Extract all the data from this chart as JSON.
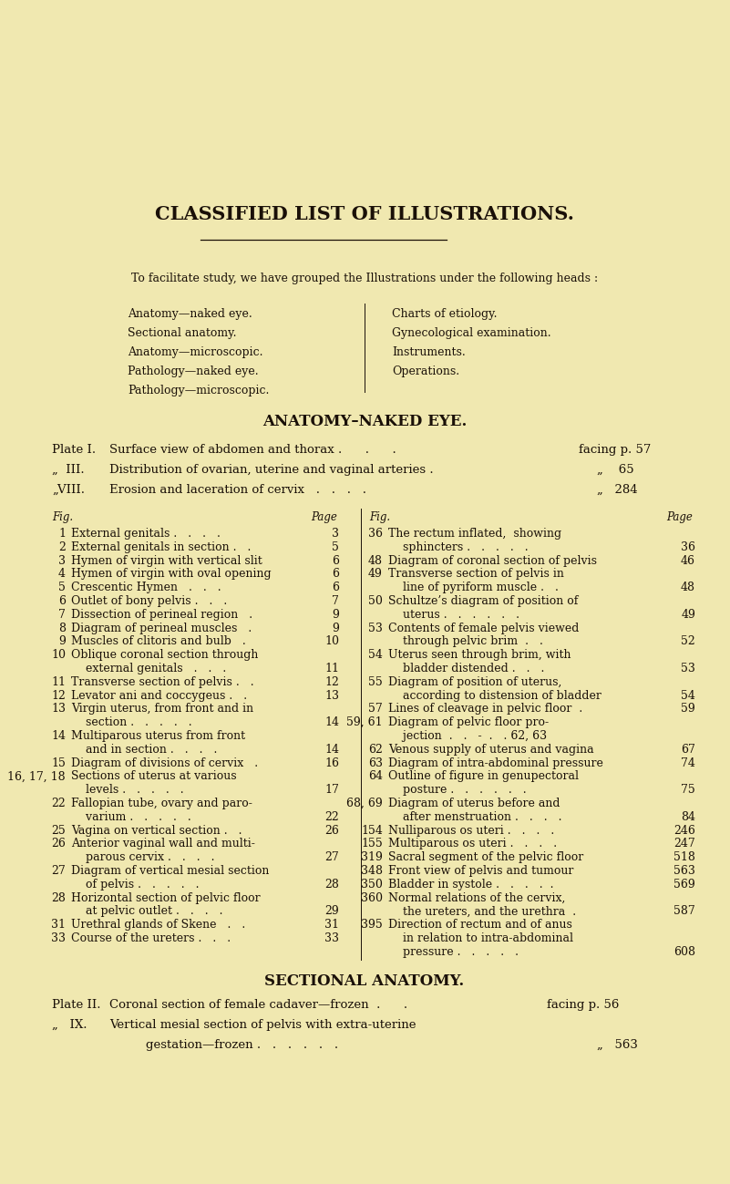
{
  "bg_color": "#f0e8b0",
  "title": "CLASSIFIED LIST OF ILLUSTRATIONS.",
  "intro": "To facilitate study, we have grouped the Illustrations under the following heads :",
  "left_list": [
    "Anatomy—naked eye.",
    "Sectional anatomy.",
    "Anatomy—microscopic.",
    "Pathology—naked eye.",
    "Pathology—microscopic."
  ],
  "right_list": [
    "Charts of etiology.",
    "Gynecological examination.",
    "Instruments.",
    "Operations."
  ],
  "section1_title": "ANATOMY–NAKED EYE.",
  "left_entries": [
    [
      "1",
      "External genitals .   .   .   .",
      "3"
    ],
    [
      "2",
      "External genitals in section .   .",
      "5"
    ],
    [
      "3",
      "Hymen of virgin with vertical slit",
      "6"
    ],
    [
      "4",
      "Hymen of virgin with oval opening",
      "6"
    ],
    [
      "5",
      "Crescentic Hymen   .   .   .",
      "6"
    ],
    [
      "6",
      "Outlet of bony pelvis .   .   .",
      "7"
    ],
    [
      "7",
      "Dissection of perineal region   .",
      "9"
    ],
    [
      "8",
      "Diagram of perineal muscles   .",
      "9"
    ],
    [
      "9",
      "Muscles of clitoris and bulb   .",
      "10"
    ],
    [
      "10",
      "Oblique coronal section through",
      ""
    ],
    [
      "",
      "    external genitals   .   .   .",
      "11"
    ],
    [
      "11",
      "Transverse section of pelvis .   .",
      "12"
    ],
    [
      "12",
      "Levator ani and coccygeus .   .",
      "13"
    ],
    [
      "13",
      "Virgin uterus, from front and in",
      ""
    ],
    [
      "",
      "    section .   .   .   .   .",
      "14"
    ],
    [
      "14",
      "Multiparous uterus from front",
      ""
    ],
    [
      "",
      "    and in section .   .   .   .",
      "14"
    ],
    [
      "15",
      "Diagram of divisions of cervix   .",
      "16"
    ],
    [
      "16, 17, 18",
      "Sections of uterus at various",
      ""
    ],
    [
      "",
      "    levels .   .   .   .   .",
      "17"
    ],
    [
      "22",
      "Fallopian tube, ovary and paro-",
      ""
    ],
    [
      "",
      "    varium .   .   .   .   .",
      "22"
    ],
    [
      "25",
      "Vagina on vertical section .   .",
      "26"
    ],
    [
      "26",
      "Anterior vaginal wall and multi-",
      ""
    ],
    [
      "",
      "    parous cervix .   .   .   .",
      "27"
    ],
    [
      "27",
      "Diagram of vertical mesial section",
      ""
    ],
    [
      "",
      "    of pelvis .   .   .   .   .",
      "28"
    ],
    [
      "28",
      "Horizontal section of pelvic floor",
      ""
    ],
    [
      "",
      "    at pelvic outlet .   .   .   .",
      "29"
    ],
    [
      "31",
      "Urethral glands of Skene   .   .",
      "31"
    ],
    [
      "33",
      "Course of the ureters .   .   .",
      "33"
    ]
  ],
  "right_entries": [
    [
      "36",
      "The rectum inflated,  showing",
      ""
    ],
    [
      "",
      "    sphincters .   .   .   .   .",
      "36"
    ],
    [
      "48",
      "Diagram of coronal section of pelvis",
      "46"
    ],
    [
      "49",
      "Transverse section of pelvis in",
      ""
    ],
    [
      "",
      "    line of pyriform muscle .   .",
      "48"
    ],
    [
      "50",
      "Schultze’s diagram of position of",
      ""
    ],
    [
      "",
      "    uterus .   .   .   .   .   .",
      "49"
    ],
    [
      "53",
      "Contents of female pelvis viewed",
      ""
    ],
    [
      "",
      "    through pelvic brim  .   .",
      "52"
    ],
    [
      "54",
      "Uterus seen through brim, with",
      ""
    ],
    [
      "",
      "    bladder distended .   .   .",
      "53"
    ],
    [
      "55",
      "Diagram of position of uterus,",
      ""
    ],
    [
      "",
      "    according to distension of bladder",
      "54"
    ],
    [
      "57",
      "Lines of cleavage in pelvic floor  .",
      "59"
    ],
    [
      "59, 61",
      "Diagram of pelvic floor pro-",
      ""
    ],
    [
      "",
      "    jection  .   .   -  .   . 62, 63",
      ""
    ],
    [
      "62",
      "Venous supply of uterus and vagina",
      "67"
    ],
    [
      "63",
      "Diagram of intra-abdominal pressure",
      "74"
    ],
    [
      "64",
      "Outline of figure in genupectoral",
      ""
    ],
    [
      "",
      "    posture .   .   .   .   .   .",
      "75"
    ],
    [
      "68, 69",
      "Diagram of uterus before and",
      ""
    ],
    [
      "",
      "    after menstruation .   .   .   .",
      "84"
    ],
    [
      "154",
      "Nulliparous os uteri .   .   .   .",
      "246"
    ],
    [
      "155",
      "Multiparous os uteri .   .   .   .",
      "247"
    ],
    [
      "319",
      "Sacral segment of the pelvic floor",
      "518"
    ],
    [
      "348",
      "Front view of pelvis and tumour",
      "563"
    ],
    [
      "350",
      "Bladder in systole .   .   .   .  .",
      "569"
    ],
    [
      "360",
      "Normal relations of the cervix,",
      ""
    ],
    [
      "",
      "    the ureters, and the urethra  .",
      "587"
    ],
    [
      "395",
      "Direction of rectum and of anus",
      ""
    ],
    [
      "",
      "    in relation to intra-abdominal",
      ""
    ],
    [
      "",
      "    pressure .   .   .   .   .",
      "608"
    ]
  ],
  "section2_title": "SECTIONAL ANATOMY.",
  "plate2_line1": "Plate II.  Coronal section of female cadaver—frozen  .       .       facing p. 56",
  "plate2_line2": "„   IX.  Vertical mesial section of pelvis with extra-uterine",
  "plate2_line3": "             gestation—frozen .   .   .   .   .   .      „   563"
}
